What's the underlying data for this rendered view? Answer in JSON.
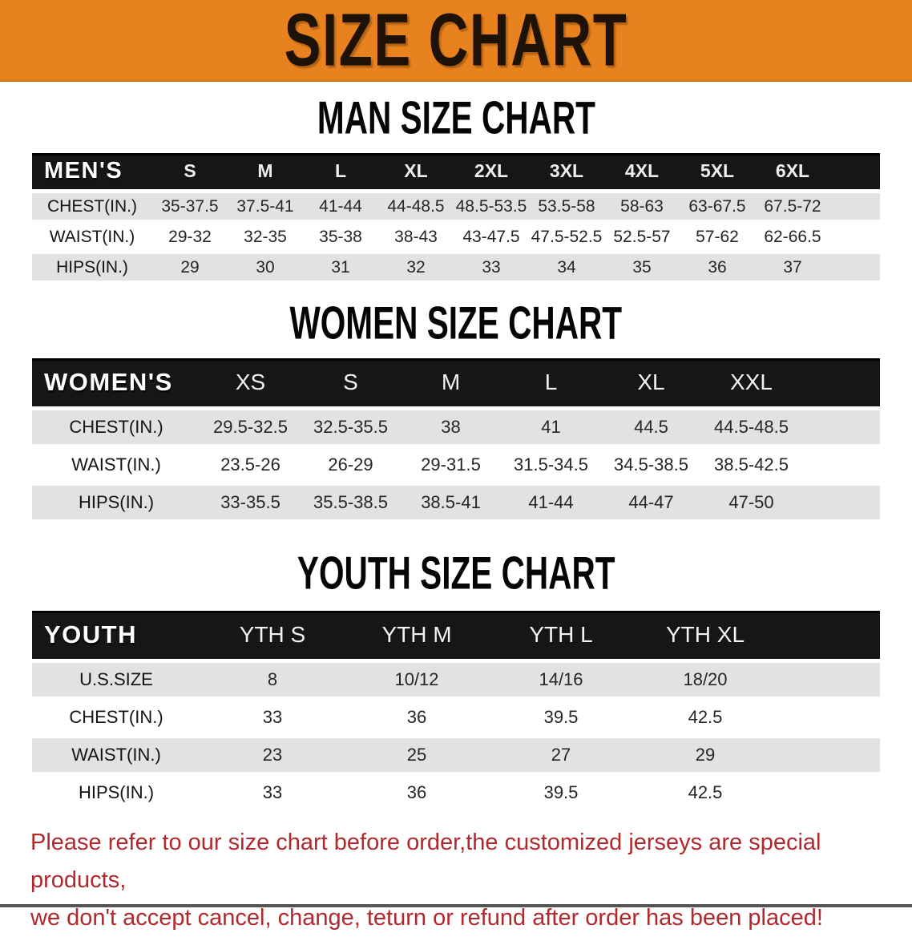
{
  "banner": {
    "title": "SIZE CHART",
    "bg_color": "#E8821E",
    "text_color": "#1E1206"
  },
  "sections": [
    {
      "heading": "MAN SIZE CHART"
    },
    {
      "heading": "WOMEN SIZE CHART"
    },
    {
      "heading": "YOUTH SIZE CHART"
    }
  ],
  "footer": {
    "line1": "Please refer to our size chart before order,the customized jerseys are special products,",
    "line2": "we don't accept cancel, change, teturn or refund after order has been placed!",
    "color": "#B2282C"
  },
  "colors": {
    "table_header_bar": "#161616",
    "row_gray": "#E2E2E2",
    "row_white": "#FFFFFF"
  },
  "chart_data": [
    {
      "type": "table",
      "id": "men",
      "title": "MAN SIZE CHART",
      "header_label": "MEN'S",
      "columns": [
        "S",
        "M",
        "L",
        "XL",
        "2XL",
        "3XL",
        "4XL",
        "5XL",
        "6XL"
      ],
      "rows": [
        {
          "label": "CHEST(IN.)",
          "values": [
            "35-37.5",
            "37.5-41",
            "41-44",
            "44-48.5",
            "48.5-53.5",
            "53.5-58",
            "58-63",
            "63-67.5",
            "67.5-72"
          ]
        },
        {
          "label": "WAIST(IN.)",
          "values": [
            "29-32",
            "32-35",
            "35-38",
            "38-43",
            "43-47.5",
            "47.5-52.5",
            "52.5-57",
            "57-62",
            "62-66.5"
          ]
        },
        {
          "label": "HIPS(IN.)",
          "values": [
            "29",
            "30",
            "31",
            "32",
            "33",
            "34",
            "35",
            "36",
            "37"
          ]
        }
      ]
    },
    {
      "type": "table",
      "id": "women",
      "title": "WOMEN SIZE CHART",
      "header_label": "WOMEN'S",
      "columns": [
        "XS",
        "S",
        "M",
        "L",
        "XL",
        "XXL"
      ],
      "rows": [
        {
          "label": "CHEST(IN.)",
          "values": [
            "29.5-32.5",
            "32.5-35.5",
            "38",
            "41",
            "44.5",
            "44.5-48.5"
          ]
        },
        {
          "label": "WAIST(IN.)",
          "values": [
            "23.5-26",
            "26-29",
            "29-31.5",
            "31.5-34.5",
            "34.5-38.5",
            "38.5-42.5"
          ]
        },
        {
          "label": "HIPS(IN.)",
          "values": [
            "33-35.5",
            "35.5-38.5",
            "38.5-41",
            "41-44",
            "44-47",
            "47-50"
          ]
        }
      ]
    },
    {
      "type": "table",
      "id": "youth",
      "title": "YOUTH SIZE CHART",
      "header_label": "YOUTH",
      "columns": [
        "YTH S",
        "YTH M",
        "YTH L",
        "YTH XL"
      ],
      "rows": [
        {
          "label": "U.S.SIZE",
          "values": [
            "8",
            "10/12",
            "14/16",
            "18/20"
          ]
        },
        {
          "label": "CHEST(IN.)",
          "values": [
            "33",
            "36",
            "39.5",
            "42.5"
          ]
        },
        {
          "label": "WAIST(IN.)",
          "values": [
            "23",
            "25",
            "27",
            "29"
          ]
        },
        {
          "label": "HIPS(IN.)",
          "values": [
            "33",
            "36",
            "39.5",
            "42.5"
          ]
        }
      ]
    }
  ]
}
